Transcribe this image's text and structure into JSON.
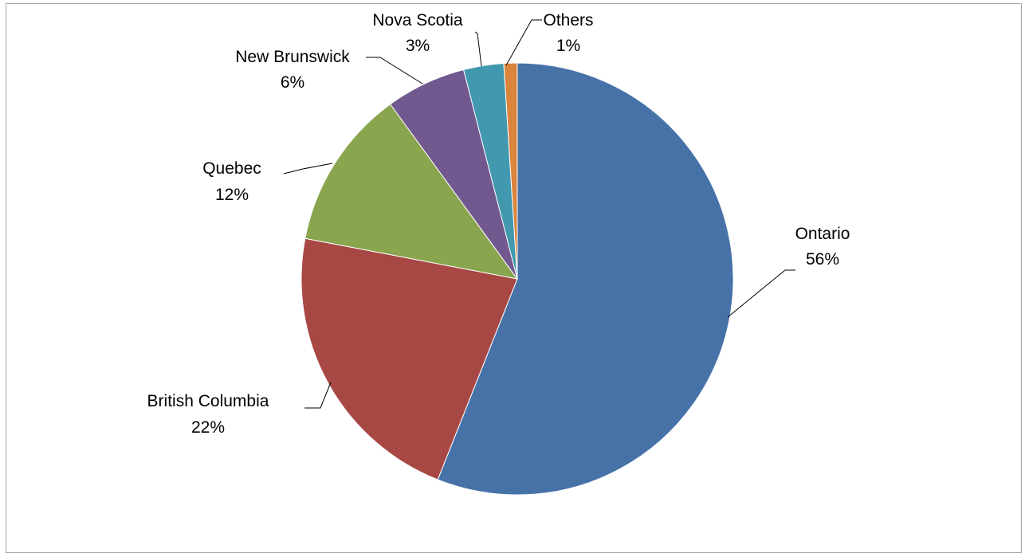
{
  "chart_data": {
    "type": "pie",
    "title": "",
    "slices": [
      {
        "label": "Ontario",
        "value": 56,
        "value_label": "56%",
        "color": "#4672a8"
      },
      {
        "label": "British Columbia",
        "value": 22,
        "value_label": "22%",
        "color": "#a74845"
      },
      {
        "label": "Quebec",
        "value": 12,
        "value_label": "12%",
        "color": "#89a54e"
      },
      {
        "label": "New Brunswick",
        "value": 6,
        "value_label": "6%",
        "color": "#71588f"
      },
      {
        "label": "Nova Scotia",
        "value": 3,
        "value_label": "3%",
        "color": "#4298af"
      },
      {
        "label": "Others",
        "value": 1,
        "value_label": "1%",
        "color": "#db843d"
      }
    ],
    "legend": "none",
    "data_labels": "outside-with-leader-lines"
  }
}
